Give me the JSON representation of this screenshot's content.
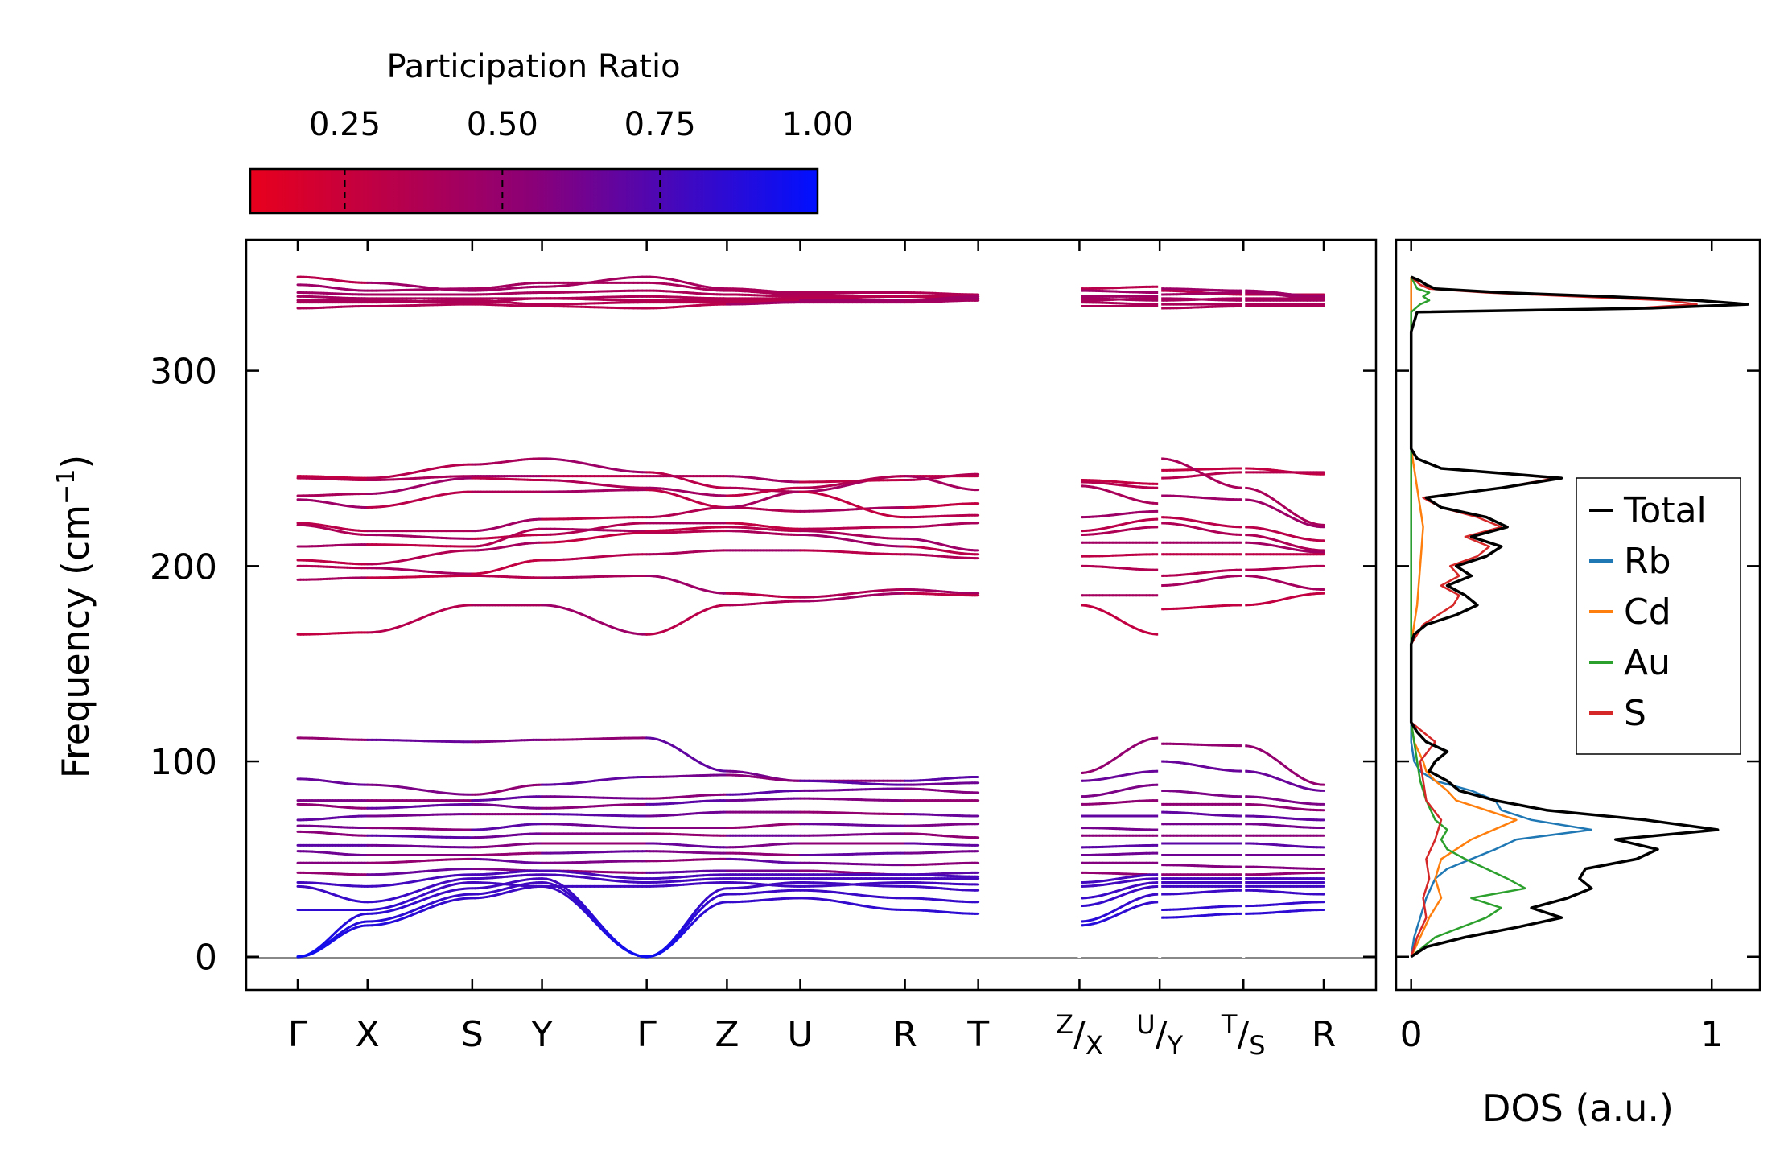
{
  "chart_data": [
    {
      "type": "line",
      "title": "",
      "xlabel": "",
      "ylabel": "Frequency (cm⁻¹)",
      "ylabel_parts": {
        "text": "Frequency (cm",
        "sup": "−1",
        "close": ")"
      },
      "ylim": [
        -17,
        367
      ],
      "yticks": [
        0,
        100,
        200,
        300
      ],
      "ytick_labels": [
        "0",
        "100",
        "200",
        "300"
      ],
      "zero_line": 0,
      "segments": [
        {
          "labels": [
            "Γ",
            "X",
            "S",
            "Y",
            "Γ",
            "Z",
            "U",
            "R",
            "T"
          ],
          "positions": [
            0,
            1,
            2.5,
            3.5,
            5,
            6.15,
            7.2,
            8.7,
            9.75
          ],
          "end": 11.2
        },
        {
          "labels": [],
          "positions": [
            11.2
          ],
          "end": 12.35
        },
        {
          "labels": [],
          "positions": [
            12.35
          ],
          "end": 13.55
        },
        {
          "labels": [
            "R"
          ],
          "positions": [
            14.7
          ],
          "start": 13.55,
          "end": 14.7
        }
      ],
      "x_tick_labels": [
        {
          "label": "Γ",
          "pos": 0
        },
        {
          "label": "X",
          "pos": 1
        },
        {
          "label": "S",
          "pos": 2.5
        },
        {
          "label": "Y",
          "pos": 3.5
        },
        {
          "label": "Γ",
          "pos": 5
        },
        {
          "label": "Z",
          "pos": 6.15
        },
        {
          "label": "U",
          "pos": 7.2
        },
        {
          "label": "R",
          "pos": 8.7
        },
        {
          "label": "T",
          "pos": 9.75
        },
        {
          "label": "X",
          "sup": "Z",
          "pos": 11.2
        },
        {
          "label": "Y",
          "sup": "U",
          "pos": 12.35
        },
        {
          "label": "S",
          "sup": "T",
          "pos": 13.55
        },
        {
          "label": "R",
          "pos": 14.7
        }
      ],
      "bands": {
        "optical_high": [
          [
            348,
            345,
            341,
            343,
            348,
            342,
            340,
            340,
            339,
            342,
            343,
            341,
            339,
            339
          ],
          [
            344,
            341,
            342,
            345,
            345,
            341,
            339,
            338,
            338,
            341,
            340,
            342,
            341,
            338
          ],
          [
            340,
            339,
            339,
            340,
            341,
            339,
            338,
            338,
            337,
            338,
            338,
            339,
            340,
            337
          ],
          [
            338,
            337,
            337,
            337,
            338,
            337,
            337,
            338,
            336,
            337,
            336,
            337,
            336,
            336
          ],
          [
            336,
            336,
            335,
            337,
            336,
            336,
            337,
            336,
            337,
            336,
            337,
            336,
            337,
            337
          ],
          [
            335,
            335,
            336,
            334,
            335,
            335,
            336,
            336,
            338,
            335,
            334,
            334,
            334,
            334
          ],
          [
            332,
            333,
            334,
            333,
            332,
            334,
            335,
            335,
            336,
            333,
            333,
            332,
            333,
            333
          ]
        ],
        "optical_mid": [
          [
            246,
            245,
            252,
            255,
            248,
            240,
            238,
            246,
            246,
            244,
            242,
            249,
            250,
            247
          ],
          [
            245,
            244,
            246,
            246,
            246,
            246,
            243,
            244,
            247,
            243,
            240,
            245,
            248,
            248
          ],
          [
            236,
            237,
            245,
            244,
            240,
            236,
            240,
            246,
            239,
            241,
            232,
            255,
            240,
            221
          ],
          [
            234,
            230,
            238,
            238,
            239,
            230,
            228,
            230,
            232,
            225,
            228,
            236,
            234,
            220
          ],
          [
            222,
            218,
            218,
            224,
            225,
            230,
            238,
            225,
            226,
            218,
            224,
            225,
            220,
            213
          ],
          [
            221,
            216,
            214,
            216,
            222,
            222,
            219,
            220,
            222,
            216,
            220,
            222,
            216,
            208
          ],
          [
            210,
            211,
            210,
            219,
            218,
            220,
            218,
            214,
            208,
            212,
            212,
            212,
            212,
            207
          ],
          [
            203,
            201,
            208,
            212,
            217,
            218,
            216,
            210,
            206,
            205,
            206,
            206,
            206,
            206
          ],
          [
            200,
            199,
            196,
            203,
            206,
            208,
            208,
            206,
            204,
            200,
            198,
            195,
            198,
            200
          ],
          [
            193,
            194,
            195,
            194,
            195,
            186,
            184,
            188,
            186,
            185,
            185,
            190,
            195,
            188
          ],
          [
            165,
            166,
            180,
            180,
            165,
            180,
            182,
            186,
            185,
            180,
            165,
            178,
            180,
            186
          ]
        ],
        "optical_low": [
          [
            112,
            111,
            110,
            111,
            112,
            95,
            90,
            90,
            92,
            94,
            112,
            109,
            108,
            88
          ],
          [
            91,
            88,
            83,
            88,
            92,
            93,
            90,
            88,
            89,
            90,
            95,
            100,
            95,
            85
          ],
          [
            80,
            80,
            80,
            82,
            81,
            83,
            85,
            86,
            84,
            82,
            88,
            85,
            82,
            78
          ],
          [
            78,
            76,
            78,
            76,
            78,
            80,
            81,
            80,
            80,
            78,
            80,
            78,
            78,
            75
          ],
          [
            70,
            72,
            73,
            73,
            72,
            74,
            74,
            73,
            72,
            72,
            72,
            74,
            72,
            70
          ],
          [
            67,
            66,
            65,
            68,
            66,
            66,
            68,
            67,
            68,
            66,
            65,
            68,
            68,
            66
          ],
          [
            64,
            62,
            61,
            63,
            63,
            62,
            62,
            63,
            61,
            62,
            62,
            62,
            62,
            62
          ],
          [
            57,
            57,
            56,
            58,
            58,
            56,
            58,
            58,
            57,
            56,
            57,
            58,
            58,
            56
          ],
          [
            54,
            52,
            52,
            53,
            54,
            53,
            52,
            53,
            54,
            52,
            53,
            52,
            52,
            52
          ],
          [
            48,
            48,
            50,
            48,
            49,
            50,
            48,
            47,
            48,
            48,
            48,
            47,
            46,
            45
          ],
          [
            43,
            42,
            45,
            44,
            43,
            44,
            44,
            42,
            43,
            43,
            42,
            42,
            42,
            43
          ]
        ],
        "acoustic_low": [
          [
            0,
            18,
            32,
            38,
            0,
            28,
            30,
            24,
            22,
            16,
            28,
            20,
            22,
            24
          ],
          [
            0,
            16,
            30,
            36,
            0,
            32,
            34,
            30,
            28,
            18,
            32,
            24,
            26,
            28
          ],
          [
            0,
            22,
            35,
            40,
            0,
            35,
            38,
            36,
            34,
            26,
            36,
            32,
            34,
            32
          ],
          [
            24,
            24,
            38,
            36,
            36,
            38,
            36,
            38,
            37,
            30,
            38,
            36,
            36,
            36
          ],
          [
            36,
            28,
            40,
            42,
            38,
            40,
            40,
            40,
            40,
            36,
            40,
            38,
            38,
            38
          ],
          [
            38,
            36,
            42,
            44,
            40,
            42,
            42,
            42,
            41,
            38,
            42,
            40,
            40,
            40
          ]
        ]
      }
    },
    {
      "type": "line",
      "title": "",
      "xlabel": "DOS (a.u.)",
      "ylabel": "",
      "xlim": [
        -0.05,
        1.16
      ],
      "xticks": [
        0,
        1
      ],
      "xtick_labels": [
        "0",
        "1"
      ],
      "legend": [
        "Total",
        "Rb",
        "Cd",
        "Au",
        "S"
      ],
      "legend_placement": "center-right",
      "series": [
        {
          "name": "Total",
          "color": "#000000",
          "y": [
            0,
            5,
            10,
            15,
            20,
            25,
            30,
            35,
            40,
            45,
            50,
            55,
            60,
            65,
            70,
            75,
            80,
            85,
            90,
            95,
            100,
            105,
            110,
            115,
            120,
            160,
            165,
            170,
            175,
            180,
            185,
            190,
            195,
            200,
            205,
            210,
            215,
            220,
            225,
            230,
            235,
            240,
            245,
            250,
            255,
            260,
            320,
            330,
            332,
            334,
            336,
            338,
            340,
            342,
            344,
            346,
            348
          ],
          "values": [
            0,
            0.05,
            0.18,
            0.35,
            0.5,
            0.4,
            0.52,
            0.6,
            0.56,
            0.58,
            0.75,
            0.82,
            0.68,
            1.02,
            0.78,
            0.45,
            0.28,
            0.16,
            0.12,
            0.06,
            0.08,
            0.12,
            0.05,
            0.02,
            0,
            0,
            0.01,
            0.05,
            0.15,
            0.22,
            0.18,
            0.12,
            0.2,
            0.15,
            0.25,
            0.3,
            0.2,
            0.32,
            0.25,
            0.1,
            0.05,
            0.3,
            0.5,
            0.1,
            0.02,
            0,
            0,
            0.02,
            0.8,
            1.12,
            0.95,
            0.65,
            0.3,
            0.08,
            0.05,
            0.03,
            0
          ]
        },
        {
          "name": "Rb",
          "color": "#1f77b4",
          "y": [
            0,
            10,
            20,
            30,
            40,
            45,
            50,
            55,
            60,
            65,
            70,
            75,
            80,
            85,
            90,
            95,
            100,
            110,
            120,
            348
          ],
          "values": [
            0,
            0.01,
            0.03,
            0.05,
            0.08,
            0.12,
            0.2,
            0.28,
            0.35,
            0.6,
            0.4,
            0.3,
            0.28,
            0.2,
            0.08,
            0.03,
            0.01,
            0,
            0,
            0
          ]
        },
        {
          "name": "Cd",
          "color": "#ff7f0e",
          "y": [
            0,
            10,
            20,
            30,
            40,
            50,
            60,
            70,
            80,
            85,
            90,
            95,
            100,
            110,
            120,
            160,
            180,
            200,
            220,
            240,
            260,
            348
          ],
          "values": [
            0,
            0.03,
            0.06,
            0.1,
            0.08,
            0.1,
            0.2,
            0.35,
            0.15,
            0.12,
            0.08,
            0.05,
            0.04,
            0.01,
            0,
            0,
            0.02,
            0.03,
            0.04,
            0.02,
            0,
            0
          ]
        },
        {
          "name": "Au",
          "color": "#2ca02c",
          "y": [
            0,
            10,
            20,
            25,
            30,
            35,
            40,
            45,
            50,
            55,
            60,
            65,
            70,
            80,
            90,
            100,
            120,
            330,
            334,
            336,
            338,
            340,
            342,
            348
          ],
          "values": [
            0,
            0.08,
            0.25,
            0.3,
            0.2,
            0.38,
            0.32,
            0.25,
            0.18,
            0.12,
            0.1,
            0.12,
            0.08,
            0.05,
            0.03,
            0.02,
            0,
            0,
            0.03,
            0.06,
            0.04,
            0.06,
            0.02,
            0
          ]
        },
        {
          "name": "S",
          "color": "#d62728",
          "y": [
            0,
            10,
            20,
            30,
            40,
            50,
            60,
            70,
            80,
            90,
            100,
            110,
            120,
            160,
            170,
            180,
            185,
            190,
            195,
            200,
            205,
            210,
            215,
            220,
            225,
            230,
            235,
            240,
            245,
            250,
            255,
            260,
            320,
            330,
            332,
            334,
            336,
            338,
            340,
            342,
            344,
            348
          ],
          "values": [
            0,
            0.02,
            0.05,
            0.04,
            0.06,
            0.05,
            0.08,
            0.1,
            0.05,
            0.04,
            0.03,
            0.08,
            0,
            0,
            0.04,
            0.14,
            0.16,
            0.1,
            0.16,
            0.13,
            0.22,
            0.26,
            0.18,
            0.3,
            0.22,
            0.1,
            0.04,
            0.3,
            0.48,
            0.1,
            0.02,
            0,
            0,
            0.02,
            0.75,
            0.95,
            0.85,
            0.55,
            0.25,
            0.06,
            0.03,
            0
          ]
        }
      ]
    }
  ],
  "colorbar": {
    "title": "Participation Ratio",
    "range": [
      0.1,
      1.0
    ],
    "ticks": [
      0.25,
      0.5,
      0.75,
      1.0
    ],
    "tick_labels": [
      "0.25",
      "0.50",
      "0.75",
      "1.00"
    ],
    "color_low": "#e8001c",
    "color_mid": "#8a0078",
    "color_high": "#0010ff"
  },
  "legend": {
    "items": [
      {
        "label": "Total",
        "color": "#000000"
      },
      {
        "label": "Rb",
        "color": "#1f77b4"
      },
      {
        "label": "Cd",
        "color": "#ff7f0e"
      },
      {
        "label": "Au",
        "color": "#2ca02c"
      },
      {
        "label": "S",
        "color": "#d62728"
      }
    ]
  }
}
